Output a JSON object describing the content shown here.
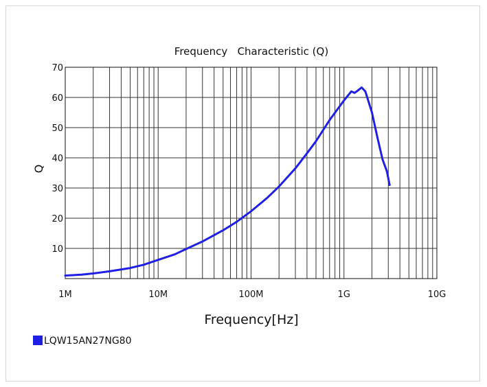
{
  "chart_data": {
    "type": "line",
    "title": "Frequency   Characteristic (Q)",
    "xlabel": "Frequency[Hz]",
    "ylabel": "Q",
    "xscale": "log",
    "xlim": [
      1000000,
      10000000000
    ],
    "ylim": [
      0,
      70
    ],
    "grid": true,
    "legend_position": "bottom-left",
    "x_ticks": [
      {
        "value": 1000000,
        "label": "1M"
      },
      {
        "value": 10000000,
        "label": "10M"
      },
      {
        "value": 100000000,
        "label": "100M"
      },
      {
        "value": 1000000000,
        "label": "1G"
      },
      {
        "value": 10000000000,
        "label": "10G"
      }
    ],
    "y_ticks": [
      10,
      20,
      30,
      40,
      50,
      60,
      70
    ],
    "series": [
      {
        "name": "LQW15AN27NG80",
        "color": "#1f1fe6",
        "points": [
          [
            1000000,
            1.0
          ],
          [
            1500000,
            1.3
          ],
          [
            2000000,
            1.7
          ],
          [
            3000000,
            2.4
          ],
          [
            5000000,
            3.5
          ],
          [
            7000000,
            4.6
          ],
          [
            10000000,
            6.2
          ],
          [
            15000000,
            8.0
          ],
          [
            20000000,
            9.8
          ],
          [
            30000000,
            12.3
          ],
          [
            50000000,
            16.0
          ],
          [
            70000000,
            18.8
          ],
          [
            100000000,
            22.3
          ],
          [
            150000000,
            26.8
          ],
          [
            200000000,
            30.5
          ],
          [
            300000000,
            36.5
          ],
          [
            400000000,
            41.5
          ],
          [
            500000000,
            45.5
          ],
          [
            700000000,
            52.5
          ],
          [
            1000000000,
            59.0
          ],
          [
            1200000000,
            62.0
          ],
          [
            1300000000,
            61.5
          ],
          [
            1400000000,
            62.2
          ],
          [
            1550000000,
            63.3
          ],
          [
            1700000000,
            62.0
          ],
          [
            2000000000,
            55.0
          ],
          [
            2300000000,
            46.5
          ],
          [
            2600000000,
            39.5
          ],
          [
            2900000000,
            35.5
          ],
          [
            3100000000,
            31.0
          ]
        ]
      }
    ]
  }
}
